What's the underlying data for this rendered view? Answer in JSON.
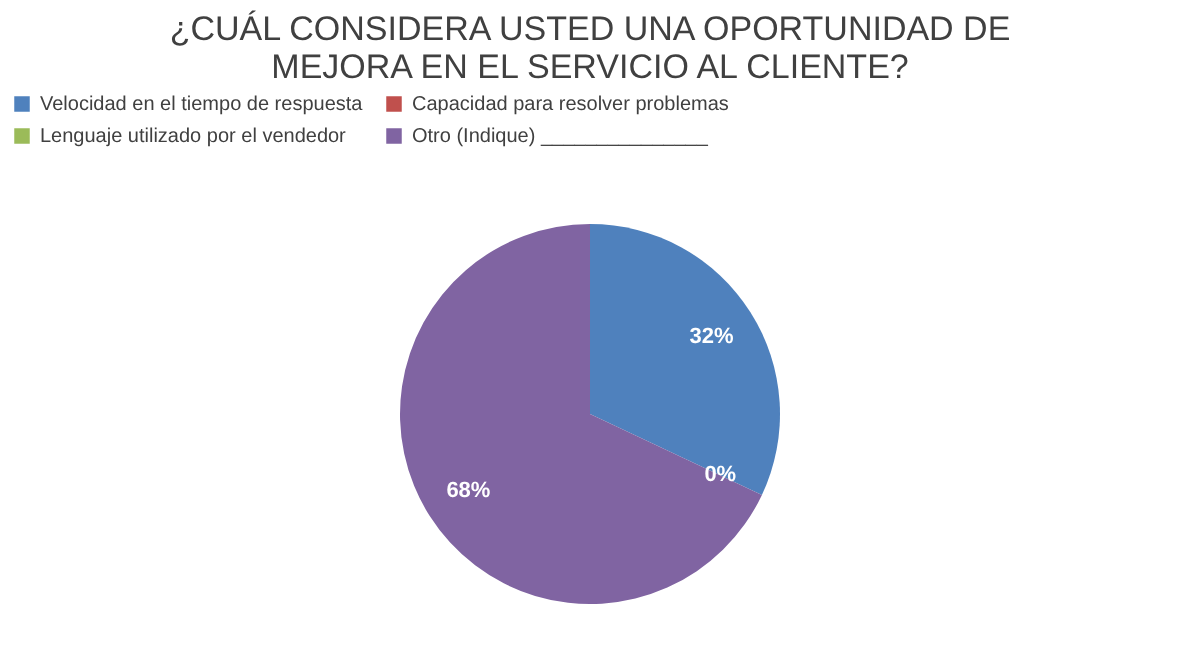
{
  "chart_data": {
    "type": "pie",
    "title": "¿CUÁL CONSIDERA USTED UNA OPORTUNIDAD DE\nMEJORA EN EL SERVICIO AL CLIENTE?",
    "categories": [
      "Velocidad en el tiempo de respuesta",
      "Capacidad para resolver problemas",
      "Lenguaje utilizado por el vendedor",
      "Otro (Indique) _______________"
    ],
    "values": [
      32,
      0,
      0,
      68
    ],
    "colors": [
      "#4f81bd",
      "#c0504d",
      "#9bbb59",
      "#8064a2"
    ],
    "value_labels": [
      "32%",
      "0%",
      null,
      "68%"
    ],
    "legend": "top"
  }
}
